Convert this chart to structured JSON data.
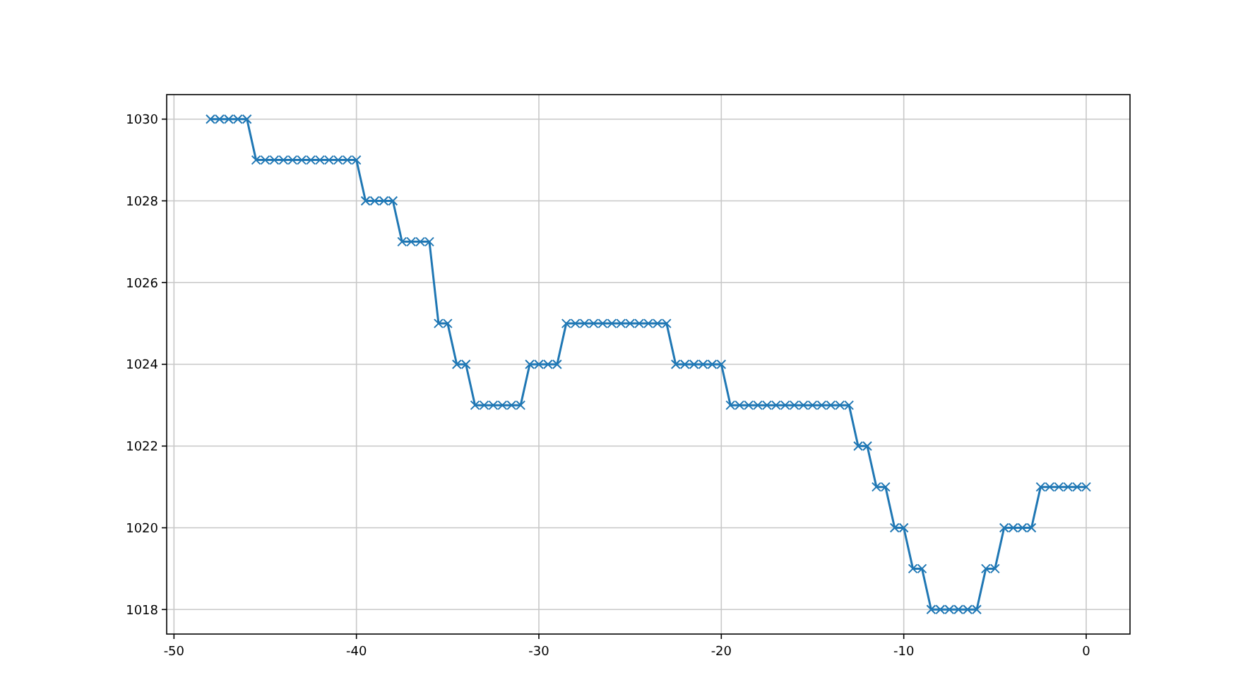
{
  "chart_data": {
    "type": "line",
    "x": [
      -48,
      -47.5,
      -47,
      -46.5,
      -46,
      -45.5,
      -45,
      -44.5,
      -44,
      -43.5,
      -43,
      -42.5,
      -42,
      -41.5,
      -41,
      -40.5,
      -40,
      -39.5,
      -39,
      -38.5,
      -38,
      -37.5,
      -37,
      -36.5,
      -36,
      -35.5,
      -35,
      -34.5,
      -34,
      -33.5,
      -33,
      -32.5,
      -32,
      -31.5,
      -31,
      -30.5,
      -30,
      -29.5,
      -29,
      -28.5,
      -28,
      -27.5,
      -27,
      -26.5,
      -26,
      -25.5,
      -25,
      -24.5,
      -24,
      -23.5,
      -23,
      -22.5,
      -22,
      -21.5,
      -21,
      -20.5,
      -20,
      -19.5,
      -19,
      -18.5,
      -18,
      -17.5,
      -17,
      -16.5,
      -16,
      -15.5,
      -15,
      -14.5,
      -14,
      -13.5,
      -13,
      -12.5,
      -12,
      -11.5,
      -11,
      -10.5,
      -10,
      -9.5,
      -9,
      -8.5,
      -8,
      -7.5,
      -7,
      -6.5,
      -6,
      -5.5,
      -5,
      -4.5,
      -4,
      -3.5,
      -3,
      -2.5,
      -2,
      -1.5,
      -1,
      -0.5,
      0
    ],
    "series": [
      {
        "color": "#1f77b4",
        "values": [
          1030,
          1030,
          1030,
          1030,
          1030,
          1029,
          1029,
          1029,
          1029,
          1029,
          1029,
          1029,
          1029,
          1029,
          1029,
          1029,
          1029,
          1028,
          1028,
          1028,
          1028,
          1027,
          1027,
          1027,
          1027,
          1025,
          1025,
          1024,
          1024,
          1023,
          1023,
          1023,
          1023,
          1023,
          1023,
          1024,
          1024,
          1024,
          1024,
          1025,
          1025,
          1025,
          1025,
          1025,
          1025,
          1025,
          1025,
          1025,
          1025,
          1025,
          1025,
          1024,
          1024,
          1024,
          1024,
          1024,
          1024,
          1023,
          1023,
          1023,
          1023,
          1023,
          1023,
          1023,
          1023,
          1023,
          1023,
          1023,
          1023,
          1023,
          1023,
          1022,
          1022,
          1021,
          1021,
          1020,
          1020,
          1019,
          1019,
          1018,
          1018,
          1018,
          1018,
          1018,
          1018,
          1019,
          1019,
          1020,
          1020,
          1020,
          1020,
          1021,
          1021,
          1021,
          1021,
          1021,
          1021
        ]
      }
    ],
    "xlim": [
      -50.4,
      2.4
    ],
    "ylim": [
      1017.4,
      1030.6
    ],
    "xticks": [
      -50,
      -40,
      -30,
      -20,
      -10,
      0
    ],
    "yticks": [
      1018,
      1020,
      1022,
      1024,
      1026,
      1028,
      1030
    ],
    "grid": true,
    "marker": "cross",
    "line_style": "solid"
  }
}
